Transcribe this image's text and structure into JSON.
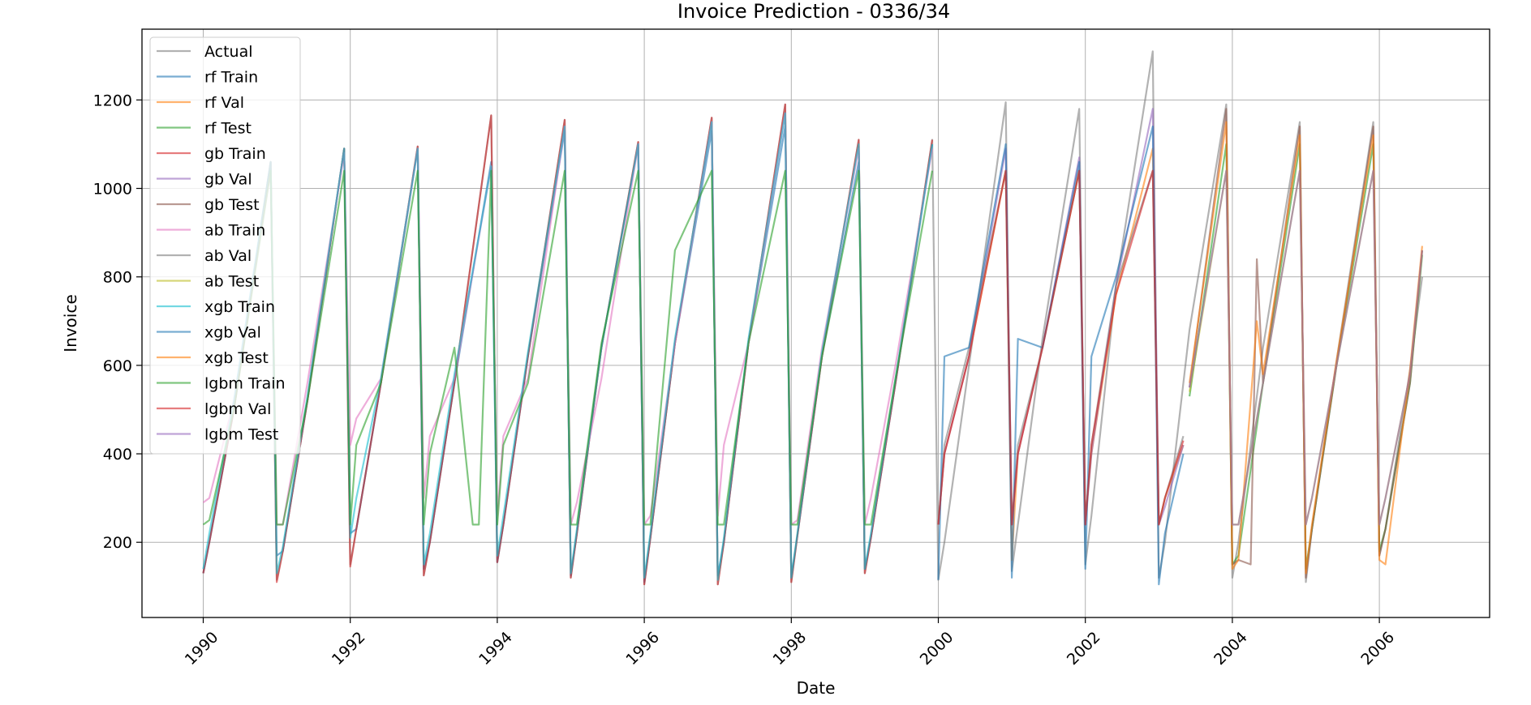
{
  "chart_data": {
    "type": "line",
    "title": "Invoice Prediction - 0336/34",
    "xlabel": "Date",
    "ylabel": "Invoice",
    "xlim": [
      "1989-03-01",
      "2007-07-01"
    ],
    "ylim": [
      30,
      1360
    ],
    "x_ticks": [
      "1990",
      "1992",
      "1994",
      "1996",
      "1998",
      "2000",
      "2002",
      "2004",
      "2006"
    ],
    "y_ticks": [
      200,
      400,
      600,
      800,
      1000,
      1200
    ],
    "grid": true,
    "legend_position": "upper-left",
    "series": [
      {
        "name": "Actual",
        "color": "#7f7f7f",
        "x": [
          "1990-01",
          "1990-02",
          "1990-06",
          "1990-12",
          "1991-01",
          "1991-02",
          "1991-06",
          "1991-12",
          "1992-01",
          "1992-02",
          "1992-06",
          "1992-12",
          "1993-01",
          "1993-02",
          "1993-06",
          "1993-12",
          "1994-01",
          "1994-02",
          "1994-06",
          "1994-12",
          "1995-01",
          "1995-02",
          "1995-06",
          "1995-12",
          "1996-01",
          "1996-02",
          "1996-06",
          "1996-12",
          "1997-01",
          "1997-02",
          "1997-06",
          "1997-12",
          "1998-01",
          "1998-02",
          "1998-06",
          "1998-12",
          "1999-01",
          "1999-02",
          "1999-06",
          "1999-12",
          "2000-01",
          "2000-02",
          "2000-06",
          "2000-12",
          "2001-01",
          "2001-02",
          "2001-06",
          "2001-12",
          "2002-01",
          "2002-02",
          "2002-06",
          "2002-12",
          "2003-01",
          "2003-02",
          "2003-06",
          "2003-12",
          "2004-01",
          "2004-02",
          "2004-06",
          "2004-12",
          "2005-01",
          "2005-02",
          "2005-06",
          "2005-12",
          "2006-01",
          "2006-02",
          "2006-06",
          "2006-08"
        ],
        "y": [
          130,
          200,
          500,
          1060,
          115,
          180,
          520,
          1090,
          150,
          230,
          560,
          1095,
          125,
          200,
          560,
          1165,
          155,
          240,
          620,
          1155,
          120,
          220,
          640,
          1105,
          105,
          210,
          650,
          1160,
          105,
          200,
          650,
          1190,
          110,
          215,
          620,
          1110,
          130,
          210,
          560,
          1110,
          115,
          200,
          600,
          1195,
          135,
          240,
          660,
          1180,
          150,
          260,
          780,
          1310,
          120,
          200,
          680,
          1190,
          120,
          200,
          640,
          1150,
          110,
          230,
          610,
          1150,
          170,
          230,
          590,
          800
        ]
      },
      {
        "name": "rf Train",
        "color": "#1f77b4",
        "x": [
          "1990-01",
          "1990-02",
          "1990-06",
          "1990-12",
          "1991-01",
          "1991-02",
          "1991-06",
          "1991-12",
          "1992-01",
          "1992-02",
          "1992-06",
          "1992-12",
          "1993-01",
          "1993-02",
          "1993-06",
          "1993-12",
          "1994-01",
          "1994-02",
          "1994-06",
          "1994-12",
          "1995-01",
          "1995-02",
          "1995-06",
          "1995-12",
          "1996-01",
          "1996-02",
          "1996-06",
          "1996-12",
          "1997-01",
          "1997-02",
          "1997-06",
          "1997-12",
          "1998-01",
          "1998-02",
          "1998-06",
          "1998-12",
          "1999-01",
          "1999-02",
          "1999-06",
          "1999-12"
        ],
        "y": [
          130,
          200,
          500,
          1060,
          170,
          180,
          520,
          1090,
          220,
          230,
          560,
          1090,
          140,
          200,
          560,
          1060,
          155,
          240,
          620,
          1130,
          125,
          220,
          640,
          1100,
          110,
          210,
          650,
          1130,
          125,
          200,
          650,
          1140,
          120,
          215,
          620,
          1060,
          140,
          210,
          560,
          1100
        ]
      },
      {
        "name": "rf Val",
        "color": "#ff7f0e",
        "x": [
          "2000-01",
          "2000-02",
          "2000-06",
          "2000-12",
          "2001-01",
          "2001-02",
          "2001-06",
          "2001-12",
          "2002-01",
          "2002-02",
          "2002-06",
          "2002-12",
          "2003-01",
          "2003-02",
          "2003-05"
        ],
        "y": [
          240,
          400,
          620,
          1040,
          160,
          400,
          640,
          1040,
          250,
          400,
          760,
          1090,
          240,
          300,
          420
        ]
      },
      {
        "name": "rf Test",
        "color": "#2ca02c",
        "x": [
          "2003-06",
          "2003-12",
          "2004-01",
          "2004-02",
          "2004-06",
          "2004-12",
          "2005-01",
          "2005-02",
          "2005-06",
          "2005-12",
          "2006-01",
          "2006-02",
          "2006-06",
          "2006-08"
        ],
        "y": [
          530,
          1100,
          150,
          170,
          560,
          1100,
          140,
          230,
          600,
          1100,
          180,
          230,
          560,
          850
        ]
      },
      {
        "name": "gb Train",
        "color": "#d62728",
        "x": [
          "1990-01",
          "1990-02",
          "1990-06",
          "1990-12",
          "1991-01",
          "1991-02",
          "1991-06",
          "1991-12",
          "1992-01",
          "1992-02",
          "1992-06",
          "1992-12",
          "1993-01",
          "1993-02",
          "1993-06",
          "1993-12",
          "1994-01",
          "1994-02",
          "1994-06",
          "1994-12",
          "1995-01",
          "1995-02",
          "1995-06",
          "1995-12",
          "1996-01",
          "1996-02",
          "1996-06",
          "1996-12",
          "1997-01",
          "1997-02",
          "1997-06",
          "1997-12",
          "1998-01",
          "1998-02",
          "1998-06",
          "1998-12",
          "1999-01",
          "1999-02",
          "1999-06",
          "1999-12"
        ],
        "y": [
          130,
          200,
          500,
          1060,
          110,
          180,
          520,
          1090,
          145,
          230,
          560,
          1095,
          125,
          200,
          560,
          1165,
          155,
          240,
          620,
          1155,
          120,
          220,
          640,
          1105,
          105,
          210,
          650,
          1160,
          105,
          200,
          650,
          1190,
          110,
          215,
          620,
          1110,
          130,
          210,
          560,
          1110
        ]
      },
      {
        "name": "gb Val",
        "color": "#9467bd",
        "x": [
          "2000-01",
          "2000-02",
          "2000-06",
          "2000-12",
          "2001-01",
          "2001-02",
          "2001-06",
          "2001-12",
          "2002-01",
          "2002-02",
          "2002-06",
          "2002-12",
          "2003-01",
          "2003-02",
          "2003-05"
        ],
        "y": [
          240,
          400,
          620,
          1090,
          240,
          400,
          640,
          1070,
          240,
          400,
          780,
          1180,
          240,
          280,
          420
        ]
      },
      {
        "name": "gb Test",
        "color": "#8c564b",
        "x": [
          "2003-06",
          "2003-12",
          "2004-01",
          "2004-02",
          "2004-04",
          "2004-05",
          "2004-06",
          "2004-12",
          "2005-01",
          "2005-02",
          "2005-06",
          "2005-12",
          "2006-01",
          "2006-02",
          "2006-06",
          "2006-08"
        ],
        "y": [
          550,
          1180,
          150,
          160,
          150,
          840,
          560,
          1140,
          120,
          230,
          600,
          1140,
          170,
          230,
          560,
          860
        ]
      },
      {
        "name": "ab Train",
        "color": "#e377c2",
        "x": [
          "1990-01",
          "1990-02",
          "1990-06",
          "1990-12",
          "1991-01",
          "1991-02",
          "1991-06",
          "1991-12",
          "1992-01",
          "1992-02",
          "1992-06",
          "1992-12",
          "1993-01",
          "1993-02",
          "1993-06",
          "1993-12",
          "1994-01",
          "1994-02",
          "1994-06",
          "1994-12",
          "1995-01",
          "1995-02",
          "1995-06",
          "1995-12",
          "1996-01",
          "1996-02",
          "1996-06",
          "1996-12",
          "1997-01",
          "1997-02",
          "1997-06",
          "1997-12",
          "1998-01",
          "1998-02",
          "1998-06",
          "1998-12",
          "1999-01",
          "1999-02",
          "1999-06",
          "1999-12"
        ],
        "y": [
          290,
          300,
          520,
          1040,
          240,
          240,
          560,
          1080,
          420,
          480,
          570,
          1090,
          300,
          440,
          570,
          1050,
          260,
          440,
          570,
          1140,
          240,
          290,
          570,
          1100,
          240,
          260,
          650,
          1150,
          260,
          420,
          650,
          1170,
          240,
          250,
          640,
          1090,
          240,
          300,
          600,
          1090
        ]
      },
      {
        "name": "ab Val",
        "color": "#7f7f7f",
        "x": [
          "2000-01",
          "2000-02",
          "2000-06",
          "2000-12",
          "2001-01",
          "2001-02",
          "2001-06",
          "2001-12",
          "2002-01",
          "2002-02",
          "2002-06",
          "2002-12",
          "2003-01",
          "2003-02",
          "2003-05"
        ],
        "y": [
          240,
          420,
          640,
          1040,
          240,
          420,
          640,
          1040,
          240,
          420,
          780,
          1040,
          240,
          300,
          440
        ]
      },
      {
        "name": "ab Test",
        "color": "#bcbd22",
        "x": [
          "2003-06",
          "2003-12",
          "2004-01",
          "2004-02",
          "2004-06",
          "2004-12",
          "2005-01",
          "2005-02",
          "2005-06",
          "2005-12",
          "2006-01",
          "2006-02",
          "2006-06",
          "2006-08"
        ],
        "y": [
          540,
          1040,
          240,
          240,
          560,
          1040,
          240,
          300,
          600,
          1040,
          240,
          300,
          580,
          860
        ]
      },
      {
        "name": "xgb Train",
        "color": "#17becf",
        "x": [
          "1990-01",
          "1990-02",
          "1990-06",
          "1990-12",
          "1991-01",
          "1991-02",
          "1991-06",
          "1991-12",
          "1992-01",
          "1992-02",
          "1992-06",
          "1992-12",
          "1993-01",
          "1993-02",
          "1993-06",
          "1993-12",
          "1994-01",
          "1994-02",
          "1994-06",
          "1994-12",
          "1995-01",
          "1995-02",
          "1995-06",
          "1995-12",
          "1996-01",
          "1996-02",
          "1996-06",
          "1996-12",
          "1997-01",
          "1997-02",
          "1997-06",
          "1997-12",
          "1998-01",
          "1998-02",
          "1998-06",
          "1998-12",
          "1999-01",
          "1999-02",
          "1999-06",
          "1999-12"
        ],
        "y": [
          140,
          220,
          520,
          1060,
          130,
          190,
          530,
          1090,
          210,
          300,
          570,
          1090,
          150,
          220,
          580,
          1050,
          170,
          260,
          630,
          1140,
          130,
          230,
          640,
          1100,
          120,
          220,
          660,
          1150,
          115,
          210,
          660,
          1170,
          120,
          220,
          630,
          1100,
          140,
          220,
          570,
          1100
        ]
      },
      {
        "name": "xgb Val",
        "color": "#1f77b4",
        "x": [
          "2000-01",
          "2000-02",
          "2000-06",
          "2000-12",
          "2001-01",
          "2001-02",
          "2001-06",
          "2001-12",
          "2002-01",
          "2002-02",
          "2002-06",
          "2002-12",
          "2003-01",
          "2003-02",
          "2003-05"
        ],
        "y": [
          115,
          620,
          640,
          1100,
          120,
          660,
          640,
          1060,
          140,
          620,
          800,
          1140,
          105,
          220,
          400
        ]
      },
      {
        "name": "xgb Test",
        "color": "#ff7f0e",
        "x": [
          "2003-06",
          "2003-12",
          "2004-01",
          "2004-02",
          "2004-05",
          "2004-06",
          "2004-12",
          "2005-01",
          "2005-02",
          "2005-06",
          "2005-12",
          "2006-01",
          "2006-02",
          "2006-06",
          "2006-08"
        ],
        "y": [
          560,
          1150,
          140,
          160,
          700,
          580,
          1120,
          130,
          240,
          610,
          1120,
          160,
          150,
          590,
          870
        ]
      },
      {
        "name": "lgbm Train",
        "color": "#2ca02c",
        "x": [
          "1990-01",
          "1990-02",
          "1990-06",
          "1990-12",
          "1991-01",
          "1991-02",
          "1991-06",
          "1991-12",
          "1992-01",
          "1992-02",
          "1992-06",
          "1992-12",
          "1993-01",
          "1993-02",
          "1993-06",
          "1993-09",
          "1993-10",
          "1993-12",
          "1994-01",
          "1994-02",
          "1994-06",
          "1994-12",
          "1995-01",
          "1995-02",
          "1995-06",
          "1995-12",
          "1996-01",
          "1996-02",
          "1996-06",
          "1996-12",
          "1997-01",
          "1997-02",
          "1997-06",
          "1997-12",
          "1998-01",
          "1998-02",
          "1998-06",
          "1998-12",
          "1999-01",
          "1999-02",
          "1999-06",
          "1999-12"
        ],
        "y": [
          240,
          250,
          500,
          1040,
          240,
          240,
          520,
          1040,
          240,
          420,
          560,
          1040,
          240,
          400,
          640,
          240,
          240,
          1040,
          240,
          420,
          560,
          1040,
          240,
          240,
          650,
          1040,
          240,
          240,
          860,
          1040,
          240,
          240,
          650,
          1040,
          240,
          240,
          620,
          1040,
          240,
          240,
          570,
          1040
        ]
      },
      {
        "name": "lgbm Val",
        "color": "#d62728",
        "x": [
          "2000-01",
          "2000-02",
          "2000-06",
          "2000-12",
          "2001-01",
          "2001-02",
          "2001-06",
          "2001-12",
          "2002-01",
          "2002-02",
          "2002-06",
          "2002-12",
          "2003-01",
          "2003-02",
          "2003-05"
        ],
        "y": [
          240,
          400,
          620,
          1040,
          240,
          400,
          640,
          1040,
          240,
          420,
          760,
          1040,
          240,
          300,
          430
        ]
      },
      {
        "name": "lgbm Test",
        "color": "#9467bd",
        "x": [
          "2003-06",
          "2003-12",
          "2004-01",
          "2004-02",
          "2004-06",
          "2004-12",
          "2005-01",
          "2005-02",
          "2005-06",
          "2005-12",
          "2006-01",
          "2006-02",
          "2006-06",
          "2006-08"
        ],
        "y": [
          550,
          1040,
          240,
          240,
          560,
          1040,
          240,
          300,
          600,
          1040,
          240,
          300,
          580,
          860
        ]
      }
    ]
  }
}
